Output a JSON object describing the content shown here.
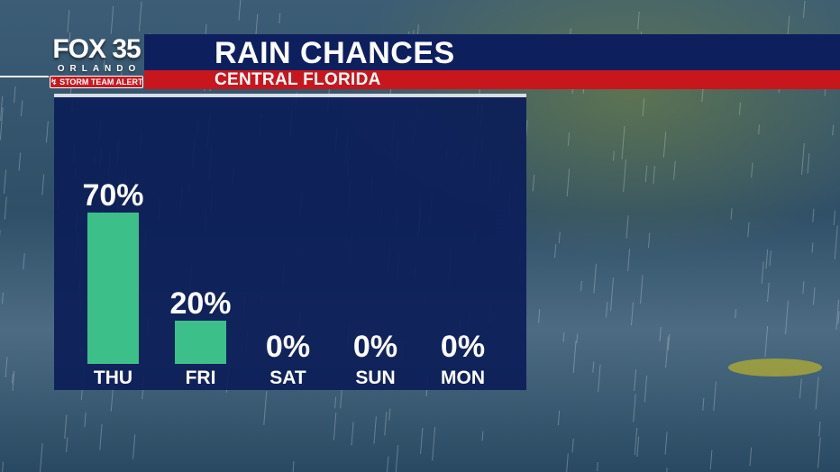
{
  "broadcast": {
    "station": "FOX 35",
    "city": "ORLANDO",
    "alert_badge": "STORM TEAM ALERT"
  },
  "title": "RAIN CHANCES",
  "subtitle": "CENTRAL FLORIDA",
  "colors": {
    "bar": "#3dbf8a",
    "title_bar": "#0e1f5e",
    "subtitle_bar": "#c8161d",
    "panel": "#0c1e58"
  },
  "chart_data": {
    "type": "bar",
    "categories": [
      "THU",
      "FRI",
      "SAT",
      "SUN",
      "MON"
    ],
    "values": [
      70,
      20,
      0,
      0,
      0
    ],
    "value_labels": [
      "70%",
      "20%",
      "0%",
      "0%",
      "0%"
    ],
    "ylim": [
      0,
      100
    ],
    "unit": "%"
  }
}
